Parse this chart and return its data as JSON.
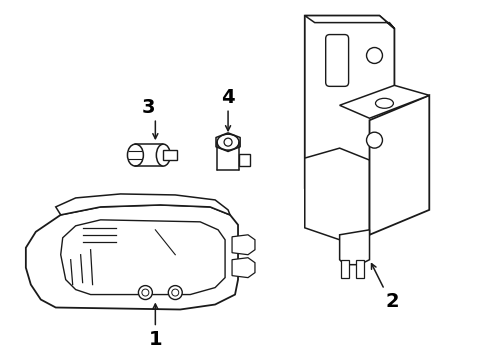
{
  "background_color": "#ffffff",
  "line_color": "#1a1a1a",
  "label_color": "#000000"
}
